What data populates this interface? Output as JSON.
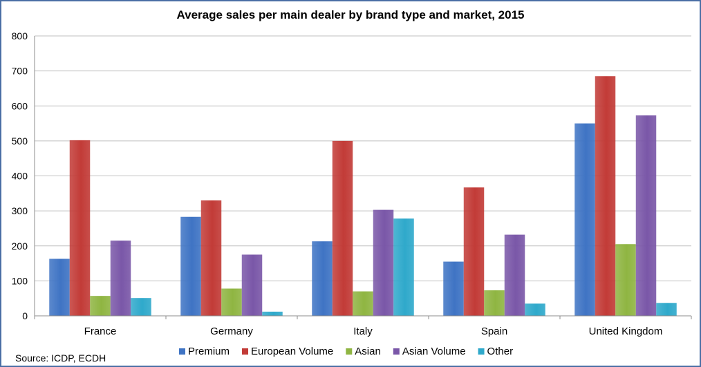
{
  "chart_data": {
    "type": "bar",
    "title": "Average sales per main dealer by brand type and market, 2015",
    "source": "Source: ICDP, ECDH",
    "categories": [
      "France",
      "Germany",
      "Italy",
      "Spain",
      "United Kingdom"
    ],
    "ylim": [
      0,
      800
    ],
    "yticks": [
      "0",
      "100",
      "200",
      "300",
      "400",
      "500",
      "600",
      "700",
      "800"
    ],
    "grid": true,
    "legend_position": "bottom",
    "series": [
      {
        "name": "Premium",
        "color": "#3f74c4",
        "values": [
          163,
          283,
          213,
          155,
          550
        ]
      },
      {
        "name": "European Volume",
        "color": "#c23b37",
        "values": [
          502,
          330,
          500,
          367,
          685
        ]
      },
      {
        "name": "Asian",
        "color": "#8fb542",
        "values": [
          57,
          78,
          70,
          73,
          205
        ]
      },
      {
        "name": "Asian Volume",
        "color": "#7a57a8",
        "values": [
          215,
          175,
          303,
          232,
          573
        ]
      },
      {
        "name": "Other",
        "color": "#2fa9cb",
        "values": [
          51,
          12,
          278,
          35,
          37
        ]
      }
    ]
  }
}
